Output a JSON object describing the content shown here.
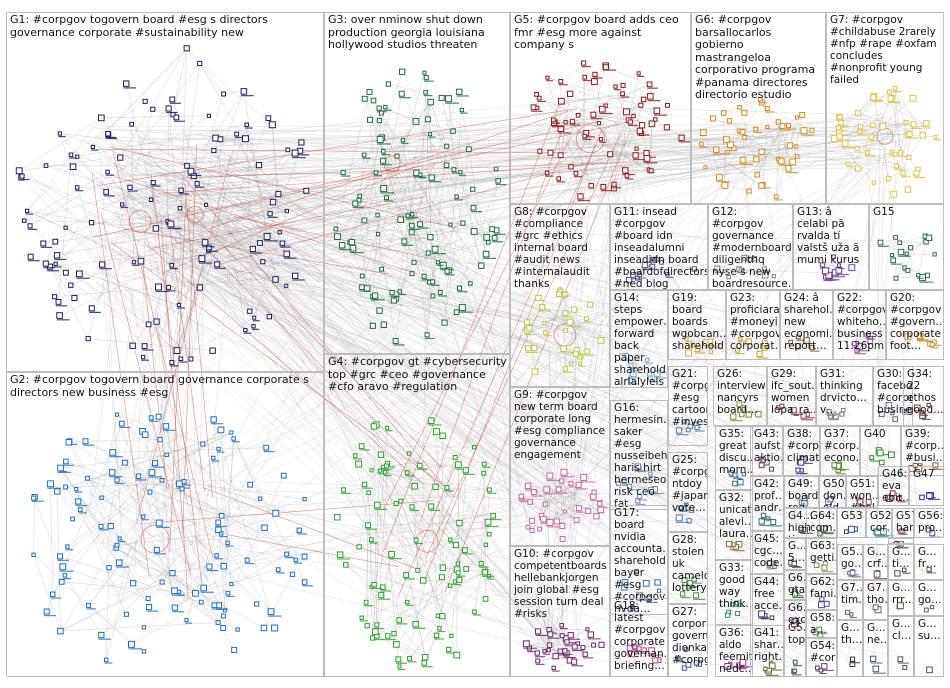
{
  "groups": [
    {
      "id": "g1",
      "label": "G1: #corpgov togovern board #esg s directors governance corporate #sustainability new",
      "color": "#1a1f5e",
      "nodes": 120
    },
    {
      "id": "g2",
      "label": "G2: #corpgov togovern board governance corporate s directors new business #esg",
      "color": "#1f6fbf",
      "nodes": 120
    },
    {
      "id": "g3",
      "label": "G3: over nminow shut down production georgia louisiana hollywood studios threaten",
      "color": "#1e6b3a",
      "nodes": 110
    },
    {
      "id": "g4",
      "label": "G4: #corpgov gt #cybersecurity top #grc #ceo #governance #cfo aravo #regulation",
      "color": "#2e9e2e",
      "nodes": 100
    },
    {
      "id": "g5",
      "label": "G5: #corpgov board adds ceo fmr #esg more against company s",
      "color": "#8b1a1a",
      "nodes": 70
    },
    {
      "id": "g6",
      "label": "G6: #corpgov barsallocarlos gobierno mastrangeloa corporativo programa #panama directores directorio estudio",
      "color": "#d4891a",
      "nodes": 45
    },
    {
      "id": "g7",
      "label": "G7: #corpgov #childabuse 2rarely #nfp #rape #oxfam concludes #nonprofit young failed",
      "color": "#e0c44a",
      "nodes": 45
    },
    {
      "id": "g8",
      "label": "G8: #corpgov #compliance #grc #ethics internal board #audit news #internalaudit thanks",
      "color": "#b7c94a",
      "nodes": 30
    },
    {
      "id": "g9",
      "label": "G9: #corpgov new term board corporate long #esg compliance governance engagement",
      "color": "#c46aa0",
      "nodes": 35
    },
    {
      "id": "g10",
      "label": "G10: #corpgov competentboards hellebankjorgen join global #esg session turn deal #risks",
      "color": "#6b2a6b",
      "nodes": 30
    },
    {
      "id": "g11",
      "label": "G11: insead #corpgov #board idn inseadalumni inseadidn board #boardofdirectors #ned blog",
      "color": "#5b4a8a",
      "nodes": 12
    },
    {
      "id": "g12",
      "label": "G12: #corpgov governance #modernboards diligenthq nyse s new boardresource…",
      "color": "#7a7a7a",
      "nodes": 10
    },
    {
      "id": "g13",
      "label": "G13: â celabi pã rvalda tí valstš uža ã mumi kurus",
      "color": "#6a3a8a",
      "nodes": 10
    },
    {
      "id": "g14",
      "label": "G14: steps empower… forward back paper sharehold… alrlalylels research glad know",
      "color": "#7aa6c2",
      "nodes": 10
    },
    {
      "id": "g15",
      "label": "G15",
      "color": "#2a6b5a",
      "nodes": 18
    },
    {
      "id": "g16",
      "label": "G16: hermesin… saker #esg nusseibeh haris hirt hermeseos risk ceo fat",
      "color": "#6b8ab0",
      "nodes": 10
    },
    {
      "id": "g17",
      "label": "G17: board nvidia accounta… sharehold… bayer #esg #corpgov nvda…",
      "color": "#3a6b9a",
      "nodes": 9
    },
    {
      "id": "g18",
      "label": "G18: latest #corpgov corporate governan… briefing…",
      "color": "#b04a8a",
      "nodes": 9
    },
    {
      "id": "g19",
      "label": "G19: board boards wgobcan… sharehold…",
      "color": "#d4a24a",
      "nodes": 8
    },
    {
      "id": "g20",
      "label": "G20: #corpgov #govern… corporate foot…",
      "color": "#c4902a",
      "nodes": 6
    },
    {
      "id": "g21",
      "label": "G21: #corpg… #esg cartoons #invest…",
      "color": "#5a7aa0",
      "nodes": 6
    },
    {
      "id": "g22",
      "label": "G22: #corpgov whiteho… business 11:26pm…",
      "color": "#8a4a9a",
      "nodes": 6
    },
    {
      "id": "g23",
      "label": "G23: proficiara #moneyi… #corpgov corporat…",
      "color": "#c4a020",
      "nodes": 6
    },
    {
      "id": "g24",
      "label": "G24: â sharehol… new economi… report…",
      "color": "#7a5a3a",
      "nodes": 6
    },
    {
      "id": "g25",
      "label": "G25: #corpg… ntdoy #japan vote…",
      "color": "#4a7a9a",
      "nodes": 6
    },
    {
      "id": "g26",
      "label": "G26: interview nancyrs board…",
      "color": "#8a8a3a",
      "nodes": 6
    },
    {
      "id": "g27",
      "label": "G27: corpor… govern… dionkat… #corpg…",
      "color": "#3a5a8a",
      "nodes": 6
    },
    {
      "id": "g28",
      "label": "G28: stolen uk camelot lottery…",
      "color": "#4a8a4a",
      "nodes": 6
    },
    {
      "id": "g29",
      "label": "G29: ifc_sout… women lopa_ra…",
      "color": "#8a3a5a",
      "nodes": 5
    },
    {
      "id": "g30",
      "label": "G30: facebo… #corpg… busine…",
      "color": "#5a6a8a",
      "nodes": 5
    },
    {
      "id": "g31",
      "label": "G31: thinking drvicto… v…",
      "color": "#7a7a7a",
      "nodes": 5
    },
    {
      "id": "g32",
      "label": "G32: unicatt alevi… laura…",
      "color": "#8a6a3a",
      "nodes": 5
    },
    {
      "id": "g33",
      "label": "G33: good way think…",
      "color": "#3a8a6a",
      "nodes": 5
    },
    {
      "id": "g34",
      "label": "G34: 22 ethos good…",
      "color": "#6a3a3a",
      "nodes": 5
    },
    {
      "id": "g35",
      "label": "G35: great discu… morn…",
      "color": "#3a6a8a",
      "nodes": 5
    },
    {
      "id": "g36",
      "label": "G36: aldo feemit nedc…",
      "color": "#8a3a8a",
      "nodes": 5
    },
    {
      "id": "g37",
      "label": "G37: #corp… econo…",
      "color": "#5a8a3a",
      "nodes": 5
    },
    {
      "id": "g38",
      "label": "G38: #corp… climat…",
      "color": "#3a3a8a",
      "nodes": 5
    },
    {
      "id": "g39",
      "label": "G39: #corp… #busi…",
      "color": "#8a5a3a",
      "nodes": 5
    },
    {
      "id": "g40",
      "label": "G40",
      "color": "#2a8a2a",
      "nodes": 5
    },
    {
      "id": "g41",
      "label": "G41: shar… right…",
      "color": "#6a6a3a",
      "nodes": 4
    },
    {
      "id": "g42",
      "label": "G42: prof… andr…",
      "color": "#3a6a6a",
      "nodes": 4
    },
    {
      "id": "g43",
      "label": "G43: aufst… aktio…",
      "color": "#6a3a6a",
      "nodes": 4
    },
    {
      "id": "g44",
      "label": "G44: free acce…",
      "color": "#3a3a6a",
      "nodes": 4
    },
    {
      "id": "g45",
      "label": "G45: cgc… code…",
      "color": "#6a6a6a",
      "nodes": 4
    },
    {
      "id": "g46",
      "label": "G46: eva ebit…",
      "color": "#8a2a2a",
      "nodes": 4
    },
    {
      "id": "g47",
      "label": "G47",
      "color": "#2a2a8a",
      "nodes": 4
    },
    {
      "id": "g48",
      "label": "G4… high tim…",
      "color": "#4a4a4a",
      "nodes": 3
    },
    {
      "id": "g49",
      "label": "G49: board red…",
      "color": "#4a6a8a",
      "nodes": 3
    },
    {
      "id": "g50",
      "label": "G50: don… old…",
      "color": "#6a4a8a",
      "nodes": 3
    },
    {
      "id": "g51",
      "label": "G51: won… #bel…",
      "color": "#8a4a4a",
      "nodes": 3
    },
    {
      "id": "g52",
      "label": "G52: cor…",
      "color": "#4a8a8a",
      "nodes": 3
    },
    {
      "id": "g53",
      "label": "G53",
      "color": "#2a4a8a",
      "nodes": 3
    },
    {
      "id": "g54",
      "label": "G54: #cor…",
      "color": "#5a3a5a",
      "nodes": 3
    },
    {
      "id": "g55",
      "label": "G5… top…",
      "color": "#3a5a3a",
      "nodes": 3
    },
    {
      "id": "g56",
      "label": "G56: pro…",
      "color": "#5a5a8a",
      "nodes": 3
    },
    {
      "id": "g57",
      "label": "G57: har…",
      "color": "#8a5a5a",
      "nodes": 3
    },
    {
      "id": "g58",
      "label": "G58: a…",
      "color": "#5a8a5a",
      "nodes": 3
    },
    {
      "id": "g59",
      "label": "G5… go…",
      "color": "#6a6a8a",
      "nodes": 3
    },
    {
      "id": "g60",
      "label": "G6… gta…",
      "color": "#2a6a2a",
      "nodes": 3
    },
    {
      "id": "g61",
      "label": "G6… exc…",
      "color": "#6a2a6a",
      "nodes": 3
    },
    {
      "id": "g62",
      "label": "G62: fami…",
      "color": "#4a4a8a",
      "nodes": 3
    },
    {
      "id": "g63",
      "label": "G63: getti…",
      "color": "#8a8a4a",
      "nodes": 3
    },
    {
      "id": "g64",
      "label": "G64: com…",
      "color": "#4a6a4a",
      "nodes": 3
    },
    {
      "id": "g65",
      "label": "G… crf…",
      "color": "#6a4a4a",
      "nodes": 2
    },
    {
      "id": "g66",
      "label": "G… ti…",
      "color": "#4a4a6a",
      "nodes": 2
    },
    {
      "id": "g67",
      "label": "G… fr…",
      "color": "#6a6a4a",
      "nodes": 2
    },
    {
      "id": "g68",
      "label": "G… th…",
      "color": "#3a3a3a",
      "nodes": 2
    },
    {
      "id": "g69",
      "label": "G… go…",
      "color": "#5a5a5a",
      "nodes": 2
    },
    {
      "id": "g70",
      "label": "G… rrr…",
      "color": "#6a5a4a",
      "nodes": 2
    },
    {
      "id": "g71",
      "label": "G… ne…",
      "color": "#4a5a6a",
      "nodes": 2
    },
    {
      "id": "g72",
      "label": "G… cl…",
      "color": "#5a4a6a",
      "nodes": 2
    },
    {
      "id": "g73",
      "label": "G… su…",
      "color": "#6a4a5a",
      "nodes": 2
    },
    {
      "id": "g74",
      "label": "G7… tim…",
      "color": "#4a6a5a",
      "nodes": 2
    },
    {
      "id": "g75",
      "label": "G7… tho…",
      "color": "#5a6a4a",
      "nodes": 2
    },
    {
      "id": "g76",
      "label": "G… 5…",
      "color": "#4a4a4a",
      "nodes": 2
    },
    {
      "id": "g77",
      "label": "G… G…",
      "color": "#6a6a6a",
      "nodes": 2
    }
  ],
  "edge_color": "#9a9a9a",
  "highlight_edge_color": "#c0392b"
}
